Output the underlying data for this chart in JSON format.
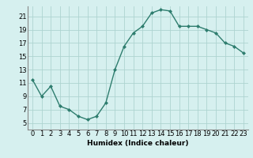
{
  "x": [
    0,
    1,
    2,
    3,
    4,
    5,
    6,
    7,
    8,
    9,
    10,
    11,
    12,
    13,
    14,
    15,
    16,
    17,
    18,
    19,
    20,
    21,
    22,
    23
  ],
  "y": [
    11.5,
    9.0,
    10.5,
    7.5,
    7.0,
    6.0,
    5.5,
    6.0,
    8.0,
    13.0,
    16.5,
    18.5,
    19.5,
    21.5,
    22.0,
    21.8,
    19.5,
    19.5,
    19.5,
    19.0,
    18.5,
    17.0,
    16.5,
    15.5
  ],
  "xlim": [
    -0.5,
    23.5
  ],
  "ylim": [
    4,
    22.5
  ],
  "xticks": [
    0,
    1,
    2,
    3,
    4,
    5,
    6,
    7,
    8,
    9,
    10,
    11,
    12,
    13,
    14,
    15,
    16,
    17,
    18,
    19,
    20,
    21,
    22,
    23
  ],
  "yticks": [
    5,
    7,
    9,
    11,
    13,
    15,
    17,
    19,
    21
  ],
  "xlabel": "Humidex (Indice chaleur)",
  "line_color": "#2e7d6e",
  "marker": "D",
  "marker_size": 2.0,
  "linewidth": 1.0,
  "bg_color": "#d6f0ef",
  "grid_color": "#aed4d0",
  "xlabel_fontsize": 6.5,
  "tick_fontsize": 6.0
}
